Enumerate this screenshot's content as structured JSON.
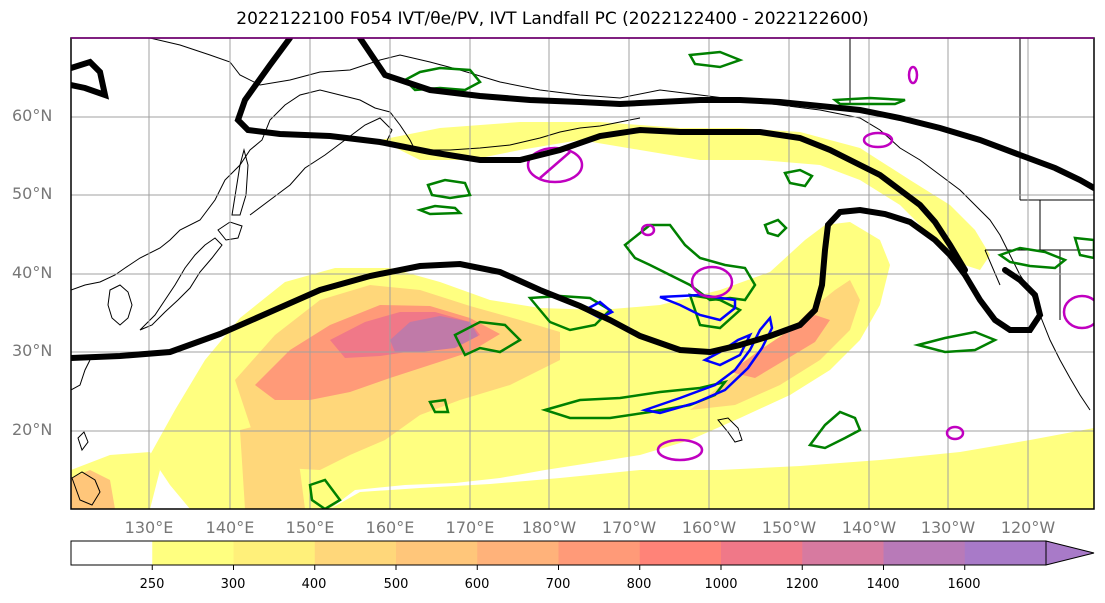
{
  "title": "2022122100 F054 IVT/θe/PV, IVT Landfall PC (2022122400 - 2022122600)",
  "lat_labels": [
    "60°N",
    "50°N",
    "40°N",
    "30°N",
    "20°N"
  ],
  "lon_labels": [
    "130°E",
    "140°E",
    "150°E",
    "160°E",
    "170°E",
    "180°W",
    "170°W",
    "160°W",
    "150°W",
    "140°W",
    "130°W",
    "120°W"
  ],
  "colorbar": {
    "ticks": [
      "250",
      "300",
      "400",
      "500",
      "600",
      "700",
      "800",
      "1000",
      "1200",
      "1400",
      "1600"
    ],
    "colors": [
      "#ffffff",
      "#ffff80",
      "#fff07a",
      "#ffd77a",
      "#ffc67a",
      "#ffb27a",
      "#ff9a78",
      "#ff8378",
      "#f07888",
      "#d77aa0",
      "#b87ab8",
      "#a87ac8"
    ]
  },
  "contour_colors": {
    "theta_e": "#000000",
    "pv_low": "#008000",
    "pv_high": "#0000ff",
    "ivt_pc": "#c000c0"
  }
}
